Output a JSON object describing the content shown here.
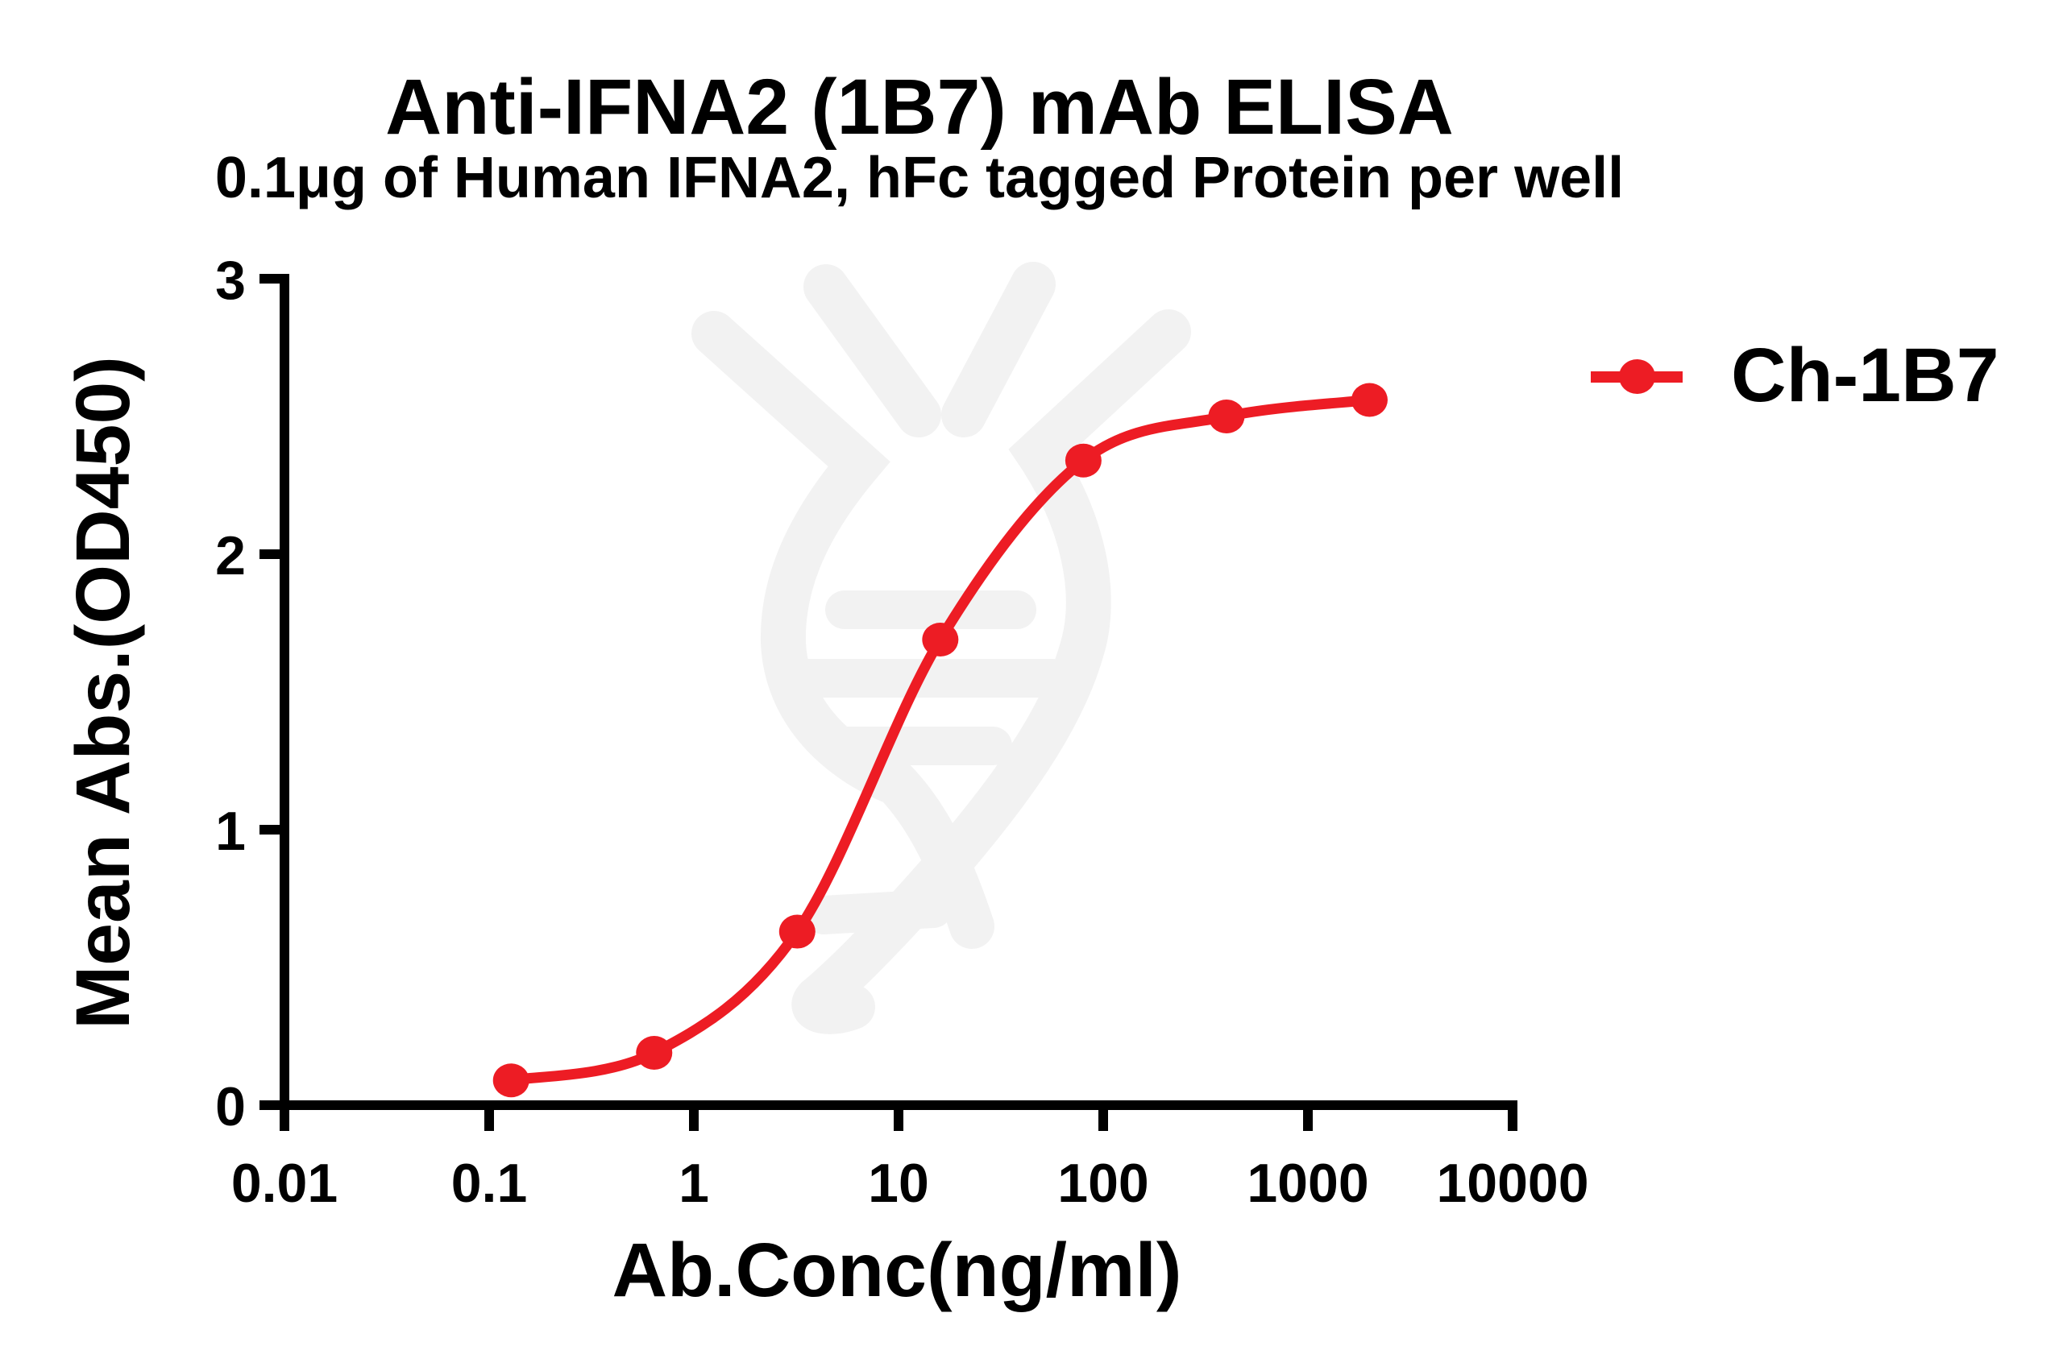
{
  "figure": {
    "title": "Anti-IFNA2 (1B7) mAb ELISA",
    "subtitle": "0.1μg of Human IFNA2, hFc tagged Protein per well"
  },
  "colors": {
    "series": "#ED1C24",
    "axis": "#000000",
    "text": "#000000",
    "watermark": "#F2F2F2",
    "background": "#FFFFFF"
  },
  "chart_data": {
    "type": "line",
    "title": "Anti-IFNA2 (1B7) mAb ELISA",
    "subtitle": "0.1μg of Human IFNA2, hFc tagged Protein per well",
    "xlabel": "Ab.Conc(ng/ml)",
    "ylabel": "Mean Abs.(OD450)",
    "x_scale": "log10",
    "xlim": [
      0.01,
      10000
    ],
    "ylim": [
      0,
      3
    ],
    "x_ticks": [
      0.01,
      0.1,
      1,
      10,
      100,
      1000,
      10000
    ],
    "x_ticklabels": [
      "0.01",
      "0.1",
      "1",
      "10",
      "100",
      "1000",
      "10000"
    ],
    "y_ticks": [
      0,
      1,
      2,
      3
    ],
    "y_ticklabels": [
      "0",
      "1",
      "2",
      "3"
    ],
    "grid": false,
    "legend_position": "right-top",
    "series": [
      {
        "name": "Ch-1B7",
        "color": "#ED1C24",
        "marker": "circle",
        "x": [
          0.128,
          0.64,
          3.2,
          16,
          80,
          400,
          2000
        ],
        "y": [
          0.09,
          0.19,
          0.63,
          1.69,
          2.34,
          2.5,
          2.56
        ]
      }
    ]
  },
  "legend": {
    "label": "Ch-1B7"
  }
}
